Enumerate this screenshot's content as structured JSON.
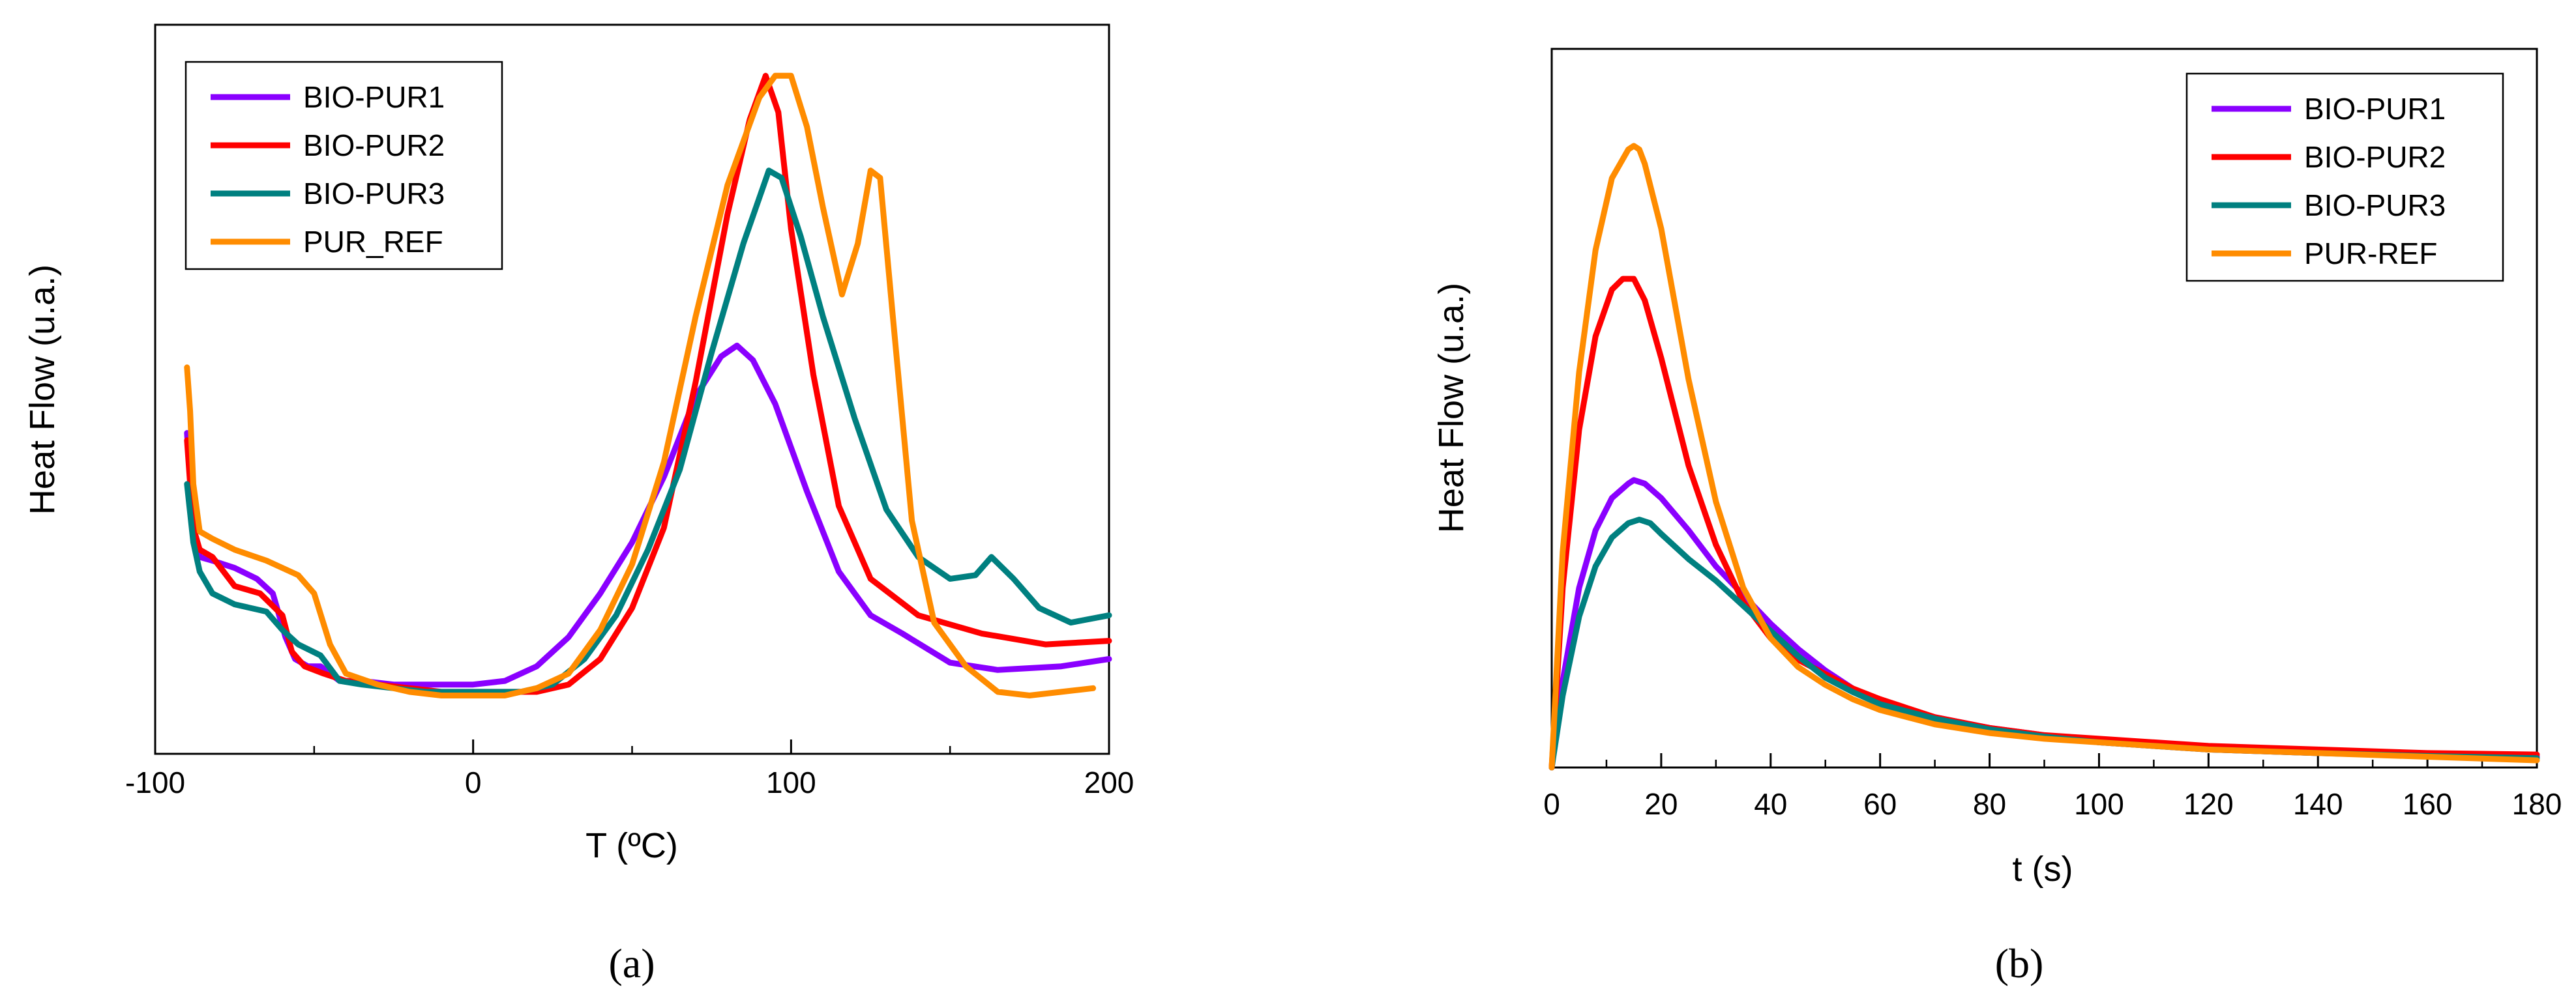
{
  "colors": {
    "BIO-PUR1": "#8A00FF",
    "BIO-PUR2": "#FF0000",
    "BIO-PUR3": "#008080",
    "PUR_REF": "#FF8C00"
  },
  "chart_data": [
    {
      "type": "line",
      "panel_label": "(a)",
      "xlabel": "T (ºC)",
      "ylabel": "Heat Flow (u.a.)",
      "xlim": [
        -100,
        200
      ],
      "ylim": [
        0,
        100
      ],
      "xticks": [
        -100,
        0,
        100,
        200
      ],
      "xtick_labels": [
        "-100",
        "0",
        "100",
        "200"
      ],
      "minor_xticks": [
        -50,
        50,
        150
      ],
      "legend_position": "top-left",
      "series": [
        {
          "name": "BIO-PUR1",
          "color": "#8A00FF",
          "x": [
            -90,
            -88,
            -86,
            -82,
            -75,
            -68,
            -63,
            -59,
            -56,
            -52,
            -48,
            -42,
            -35,
            -25,
            -10,
            0,
            10,
            20,
            30,
            40,
            50,
            60,
            70,
            78,
            83,
            88,
            95,
            105,
            115,
            125,
            135,
            150,
            165,
            185,
            200
          ],
          "y": [
            44,
            31,
            27,
            26.5,
            25.5,
            24,
            22,
            16,
            13,
            12,
            12,
            10,
            10,
            9.5,
            9.5,
            9.5,
            10,
            12,
            16,
            22,
            29,
            38,
            49,
            54.5,
            56,
            54,
            48,
            36,
            25,
            19,
            16.5,
            12.5,
            11.5,
            12,
            13
          ]
        },
        {
          "name": "BIO-PUR2",
          "color": "#FF0000",
          "x": [
            -90,
            -88,
            -86,
            -82,
            -75,
            -67,
            -60,
            -57,
            -53,
            -47,
            -40,
            -30,
            -20,
            -10,
            0,
            10,
            20,
            30,
            40,
            50,
            60,
            70,
            80,
            87,
            92,
            96,
            100,
            107,
            115,
            125,
            140,
            160,
            180,
            200
          ],
          "y": [
            43,
            31,
            28,
            27,
            23,
            22,
            19,
            14,
            12,
            11,
            10,
            9.5,
            9,
            8.5,
            8.5,
            8.5,
            8.5,
            9.5,
            13,
            20,
            31,
            51,
            74,
            87,
            93,
            88,
            72,
            52,
            34,
            24,
            19,
            16.5,
            15,
            15.5
          ]
        },
        {
          "name": "BIO-PUR3",
          "color": "#008080",
          "x": [
            -90,
            -88,
            -86,
            -82,
            -75,
            -65,
            -60,
            -55,
            -48,
            -42,
            -35,
            -25,
            -15,
            -5,
            5,
            15,
            25,
            35,
            45,
            55,
            65,
            75,
            85,
            93,
            97,
            103,
            110,
            120,
            130,
            140,
            150,
            158,
            163,
            170,
            178,
            188,
            200
          ],
          "y": [
            37,
            29,
            25,
            22,
            20.5,
            19.5,
            17,
            15,
            13.5,
            10,
            9.5,
            9,
            8.5,
            8.5,
            8.5,
            8.5,
            9.5,
            13,
            19,
            28,
            39,
            55,
            70,
            80,
            79,
            71,
            60,
            46,
            33.5,
            27,
            24,
            24.5,
            27,
            24,
            20,
            18,
            19
          ]
        },
        {
          "name": "PUR_REF",
          "color": "#FF8C00",
          "x": [
            -90,
            -89,
            -88,
            -86,
            -82,
            -75,
            -65,
            -55,
            -50,
            -45,
            -40,
            -30,
            -20,
            -10,
            0,
            10,
            20,
            30,
            40,
            50,
            60,
            70,
            80,
            90,
            95,
            100,
            105,
            110,
            116,
            121,
            125,
            128,
            132,
            138,
            145,
            155,
            165,
            175,
            185,
            195
          ],
          "y": [
            53,
            47,
            37,
            30.5,
            29.5,
            28,
            26.5,
            24.5,
            22,
            15,
            11,
            9.5,
            8.5,
            8,
            8,
            8,
            9,
            11,
            17,
            26,
            40,
            60,
            78,
            90,
            93,
            93,
            86,
            75,
            63,
            70,
            80,
            79,
            60,
            32,
            18,
            12,
            8.5,
            8,
            8.5,
            9
          ]
        }
      ]
    },
    {
      "type": "line",
      "panel_label": "(b)",
      "xlabel": "t (s)",
      "ylabel": "Heat Flow (u.a.)",
      "xlim": [
        0,
        180
      ],
      "ylim": [
        0,
        100
      ],
      "xticks": [
        0,
        20,
        40,
        60,
        80,
        100,
        120,
        140,
        160,
        180
      ],
      "xtick_labels": [
        "0",
        "20",
        "40",
        "60",
        "80",
        "100",
        "120",
        "140",
        "160",
        "180"
      ],
      "minor_xticks": [
        10,
        30,
        50,
        70,
        90,
        110,
        130,
        150,
        170
      ],
      "legend_position": "top-right",
      "series": [
        {
          "name": "BIO-PUR1",
          "color": "#8A00FF",
          "x": [
            0,
            2,
            5,
            8,
            11,
            14,
            15,
            17,
            20,
            25,
            30,
            35,
            40,
            45,
            50,
            55,
            60,
            70,
            80,
            90,
            100,
            120,
            140,
            160,
            180
          ],
          "y": [
            0,
            12,
            25,
            33,
            37.5,
            39.5,
            40,
            39.5,
            37.5,
            33,
            28,
            24,
            20,
            16.5,
            13.5,
            11,
            9,
            7,
            5.5,
            4.5,
            3.5,
            2.5,
            2,
            1.8,
            1.5
          ]
        },
        {
          "name": "BIO-PUR2",
          "color": "#FF0000",
          "x": [
            0,
            2,
            5,
            8,
            11,
            13,
            14,
            15,
            17,
            20,
            25,
            30,
            35,
            40,
            45,
            50,
            55,
            60,
            70,
            80,
            90,
            100,
            120,
            140,
            160,
            180
          ],
          "y": [
            0,
            25,
            47,
            60,
            66.5,
            68,
            68,
            68,
            65,
            57,
            42,
            31,
            23,
            18,
            15,
            13,
            11,
            9.5,
            7,
            5.5,
            4.5,
            4,
            3,
            2.5,
            2,
            1.8
          ]
        },
        {
          "name": "BIO-PUR3",
          "color": "#008080",
          "x": [
            0,
            2,
            5,
            8,
            11,
            14,
            16,
            18,
            20,
            25,
            30,
            35,
            40,
            45,
            50,
            55,
            60,
            70,
            80,
            90,
            100,
            120,
            140,
            160,
            180
          ],
          "y": [
            0,
            10,
            21,
            28,
            32,
            34,
            34.5,
            34,
            32.5,
            29,
            26,
            22.5,
            19,
            15.5,
            12.5,
            10.5,
            8.8,
            6.8,
            5.3,
            4.3,
            3.5,
            2.5,
            2,
            1.6,
            1.3
          ]
        },
        {
          "name": "PUR-REF",
          "color": "#FF8C00",
          "x": [
            0,
            2,
            5,
            8,
            11,
            14,
            15,
            16,
            17,
            20,
            25,
            30,
            35,
            40,
            45,
            50,
            55,
            60,
            70,
            80,
            90,
            100,
            120,
            140,
            160,
            180
          ],
          "y": [
            0,
            30,
            55,
            72,
            82,
            86,
            86.5,
            86,
            84,
            75,
            54,
            37,
            25,
            18,
            14,
            11.5,
            9.5,
            8,
            6,
            4.8,
            4,
            3.5,
            2.5,
            2,
            1.5,
            1
          ]
        }
      ]
    }
  ]
}
